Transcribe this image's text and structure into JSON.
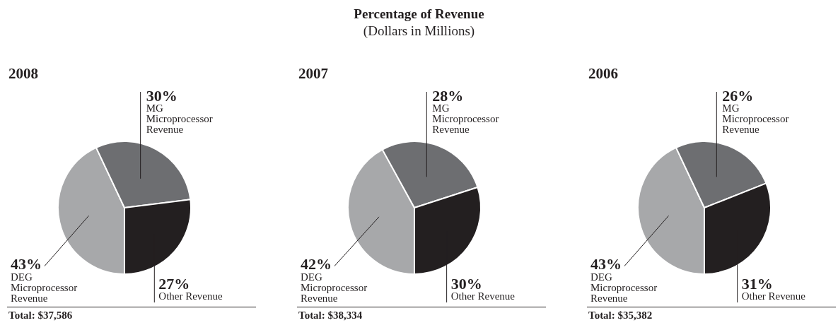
{
  "chart_data": [
    {
      "type": "pie",
      "title": "2008",
      "categories": [
        "DEG Microprocessor Revenue",
        "MG Microprocessor Revenue",
        "Other Revenue"
      ],
      "values": [
        43,
        30,
        27
      ],
      "value_labels": [
        "43%",
        "30%",
        "27%"
      ],
      "colors": [
        "#a7a8aa",
        "#6d6e71",
        "#231f20"
      ],
      "annotations": [
        "Percentage of Revenue",
        "(Dollars in Millions)",
        "Total: $37,586"
      ]
    },
    {
      "type": "pie",
      "title": "2007",
      "categories": [
        "DEG Microprocessor Revenue",
        "MG Microprocessor Revenue",
        "Other Revenue"
      ],
      "values": [
        42,
        28,
        30
      ],
      "value_labels": [
        "42%",
        "28%",
        "30%"
      ],
      "colors": [
        "#a7a8aa",
        "#6d6e71",
        "#231f20"
      ],
      "annotations": [
        "Total: $38,334"
      ]
    },
    {
      "type": "pie",
      "title": "2006",
      "categories": [
        "DEG Microprocessor Revenue",
        "MG Microprocessor Revenue",
        "Other Revenue"
      ],
      "values": [
        43,
        26,
        31
      ],
      "value_labels": [
        "43%",
        "26%",
        "31%"
      ],
      "colors": [
        "#a7a8aa",
        "#6d6e71",
        "#231f20"
      ],
      "annotations": [
        "Total: $35,382"
      ]
    }
  ]
}
